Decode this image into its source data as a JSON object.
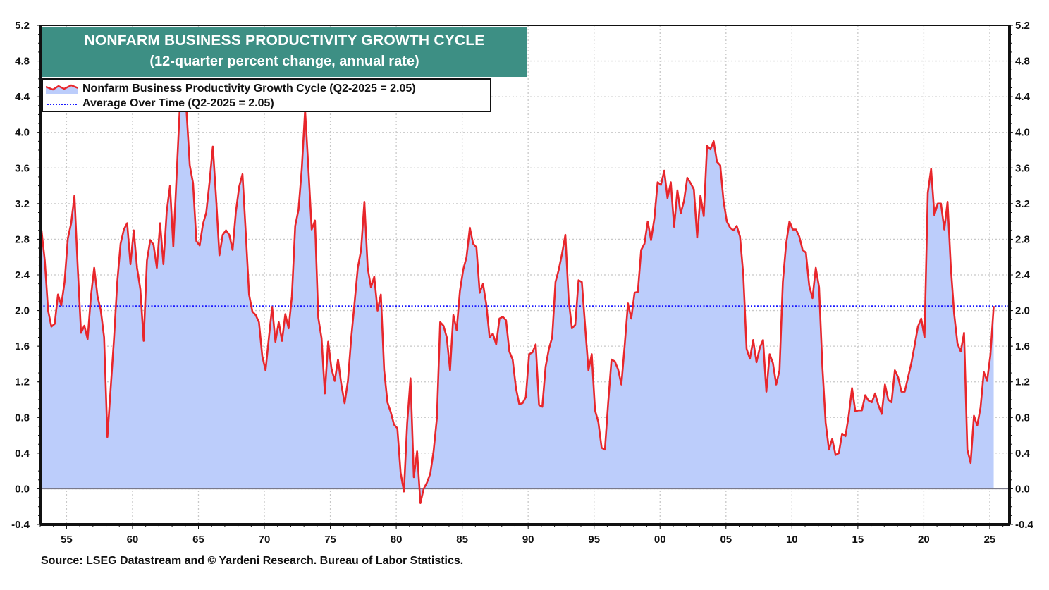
{
  "title": {
    "line1": "NONFARM BUSINESS PRODUCTIVITY GROWTH CYCLE",
    "line2": "(12-quarter percent change, annual rate)"
  },
  "legend": {
    "series_label": "Nonfarm Business Productivity Growth Cycle (Q2-2025 = 2.05)",
    "average_label": "Average Over Time (Q2-2025 = 2.05)"
  },
  "source": "Source: LSEG Datastream and © Yardeni Research. Bureau of Labor Statistics.",
  "colors": {
    "line": "#e8262b",
    "fill": "#bccdfb",
    "average": "#1a1aff",
    "title_bg": "#3d8f84",
    "grid": "#c8c8c8"
  },
  "chart_data": {
    "type": "area",
    "title": "NONFARM BUSINESS PRODUCTIVITY GROWTH CYCLE",
    "subtitle": "(12-quarter percent change, annual rate)",
    "xlabel": "",
    "ylabel": "",
    "xlim": [
      1953.0,
      2026.5
    ],
    "ylim": [
      -0.4,
      5.2
    ],
    "y_ticks": [
      -0.4,
      0.0,
      0.4,
      0.8,
      1.2,
      1.6,
      2.0,
      2.4,
      2.8,
      3.2,
      3.6,
      4.0,
      4.4,
      4.8,
      5.2
    ],
    "y_tick_labels": [
      "-0.4",
      "0.0",
      "0.4",
      "0.8",
      "1.2",
      "1.6",
      "2.0",
      "2.4",
      "2.8",
      "3.2",
      "3.6",
      "4.0",
      "4.4",
      "4.8",
      "5.2"
    ],
    "x_ticks": [
      1955,
      1960,
      1965,
      1970,
      1975,
      1980,
      1985,
      1990,
      1995,
      2000,
      2005,
      2010,
      2015,
      2020,
      2025
    ],
    "x_tick_labels": [
      "55",
      "60",
      "65",
      "70",
      "75",
      "80",
      "85",
      "90",
      "95",
      "00",
      "05",
      "10",
      "15",
      "20",
      "25"
    ],
    "grid": true,
    "axes_both_sides": true,
    "legend_position": "top-left",
    "average": {
      "name": "Average Over Time",
      "value": 2.05,
      "style": "dotted"
    },
    "series": [
      {
        "name": "Nonfarm Business Productivity Growth Cycle",
        "latest": "Q2-2025 = 2.05",
        "start_year": 1953.1,
        "end_year": 2025.3,
        "values": [
          2.9,
          2.56,
          2.0,
          1.82,
          1.85,
          2.18,
          2.06,
          2.32,
          2.81,
          2.98,
          3.29,
          2.48,
          1.75,
          1.83,
          1.68,
          2.16,
          2.48,
          2.16,
          2.0,
          1.7,
          0.58,
          1.13,
          1.68,
          2.32,
          2.75,
          2.91,
          2.98,
          2.52,
          2.9,
          2.48,
          2.24,
          1.66,
          2.56,
          2.79,
          2.74,
          2.48,
          2.98,
          2.52,
          3.11,
          3.4,
          2.72,
          3.51,
          4.3,
          4.4,
          4.25,
          3.63,
          3.43,
          2.78,
          2.73,
          2.97,
          3.1,
          3.44,
          3.84,
          3.26,
          2.62,
          2.85,
          2.9,
          2.85,
          2.68,
          3.11,
          3.39,
          3.53,
          2.87,
          2.18,
          1.99,
          1.95,
          1.87,
          1.49,
          1.33,
          1.69,
          2.04,
          1.65,
          1.87,
          1.66,
          1.96,
          1.8,
          2.16,
          2.95,
          3.13,
          3.59,
          4.25,
          3.6,
          2.91,
          3.01,
          1.92,
          1.69,
          1.07,
          1.65,
          1.35,
          1.21,
          1.45,
          1.17,
          0.96,
          1.21,
          1.69,
          2.08,
          2.48,
          2.68,
          3.22,
          2.48,
          2.26,
          2.38,
          2.0,
          2.18,
          1.33,
          0.97,
          0.86,
          0.72,
          0.68,
          0.18,
          -0.03,
          0.74,
          1.24,
          0.13,
          0.42,
          -0.16,
          0.0,
          0.07,
          0.17,
          0.42,
          0.79,
          1.87,
          1.83,
          1.7,
          1.33,
          1.95,
          1.78,
          2.22,
          2.46,
          2.6,
          2.93,
          2.75,
          2.71,
          2.2,
          2.3,
          2.07,
          1.7,
          1.74,
          1.62,
          1.91,
          1.93,
          1.89,
          1.54,
          1.45,
          1.13,
          0.95,
          0.96,
          1.03,
          1.51,
          1.53,
          1.62,
          0.94,
          0.92,
          1.37,
          1.57,
          1.7,
          2.32,
          2.46,
          2.64,
          2.85,
          2.12,
          1.8,
          1.84,
          2.34,
          2.32,
          1.82,
          1.33,
          1.51,
          0.88,
          0.75,
          0.46,
          0.44,
          0.97,
          1.45,
          1.43,
          1.34,
          1.17,
          1.61,
          2.08,
          1.91,
          2.2,
          2.21,
          2.68,
          2.75,
          3.0,
          2.79,
          3.03,
          3.44,
          3.41,
          3.57,
          3.26,
          3.44,
          2.94,
          3.35,
          3.09,
          3.23,
          3.49,
          3.43,
          3.36,
          2.82,
          3.29,
          3.06,
          3.85,
          3.81,
          3.9,
          3.67,
          3.63,
          3.23,
          3.0,
          2.93,
          2.9,
          2.95,
          2.83,
          2.4,
          1.57,
          1.46,
          1.67,
          1.42,
          1.58,
          1.67,
          1.09,
          1.51,
          1.41,
          1.17,
          1.33,
          2.32,
          2.75,
          3.0,
          2.91,
          2.91,
          2.83,
          2.68,
          2.65,
          2.28,
          2.14,
          2.48,
          2.26,
          1.37,
          0.74,
          0.44,
          0.56,
          0.38,
          0.4,
          0.62,
          0.59,
          0.82,
          1.13,
          0.87,
          0.88,
          0.88,
          1.05,
          0.99,
          0.97,
          1.07,
          0.94,
          0.84,
          1.17,
          1.0,
          0.97,
          1.33,
          1.25,
          1.09,
          1.09,
          1.25,
          1.41,
          1.61,
          1.82,
          1.91,
          1.7,
          3.32,
          3.59,
          3.07,
          3.2,
          3.2,
          2.91,
          3.22,
          2.48,
          1.96,
          1.63,
          1.54,
          1.75,
          0.44,
          0.29,
          0.82,
          0.71,
          0.91,
          1.31,
          1.21,
          1.5,
          2.05
        ]
      }
    ]
  }
}
